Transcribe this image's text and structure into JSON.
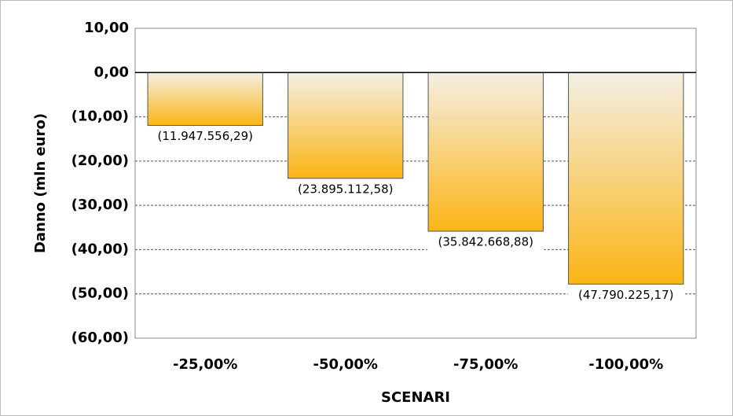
{
  "chart_data": {
    "type": "bar",
    "categories": [
      "-25,00%",
      "-50,00%",
      "-75,00%",
      "-100,00%"
    ],
    "values": [
      -11.94755629,
      -23.89511258,
      -35.84266888,
      -47.79022517
    ],
    "value_labels": [
      "(11.947.556,29)",
      "(23.895.112,58)",
      "(35.842.668,88)",
      "(47.790.225,17)"
    ],
    "color": "#fbb515",
    "ylabel": "Danno (mln euro)",
    "xlabel": "SCENARI",
    "ylim": [
      -60,
      10
    ],
    "yticks": [
      {
        "value": 10,
        "label": "10,00"
      },
      {
        "value": 0,
        "label": "0,00"
      },
      {
        "value": -10,
        "label": "(10,00)"
      },
      {
        "value": -20,
        "label": "(20,00)"
      },
      {
        "value": -30,
        "label": "(30,00)"
      },
      {
        "value": -40,
        "label": "(40,00)"
      },
      {
        "value": -50,
        "label": "(50,00)"
      },
      {
        "value": -60,
        "label": "(60,00)"
      }
    ],
    "grid": true
  }
}
